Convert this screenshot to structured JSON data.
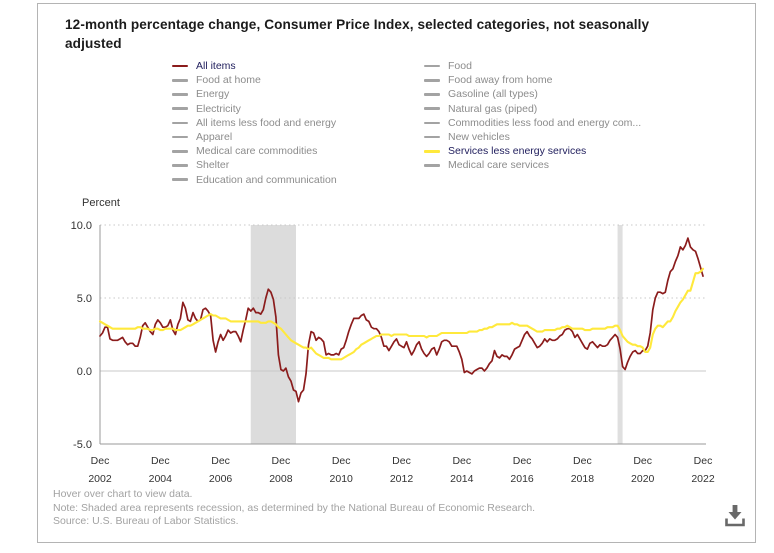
{
  "title": "12-month percentage change, Consumer Price Index, selected categories, not seasonally adjusted",
  "colors": {
    "all_items_line": "#8b1c1c",
    "services_line": "#ffe93c",
    "active_text": "#23215f",
    "inactive_text": "#8c8c8c",
    "inactive_swatch": "#a3a3a3",
    "grid": "#c8c8c8",
    "axis": "#9a9a9a",
    "tick_text": "#333333",
    "recession_band": "#dcdcdc",
    "download_icon": "#696969"
  },
  "legend": {
    "left": [
      {
        "label": "All items",
        "active": true,
        "color": "#8b1c1c",
        "text_color": "#23215f"
      },
      {
        "label": "Food at home",
        "active": false,
        "color": "#a3a3a3",
        "text_color": "#8c8c8c"
      },
      {
        "label": "Energy",
        "active": false,
        "color": "#a3a3a3",
        "text_color": "#8c8c8c"
      },
      {
        "label": "Electricity",
        "active": false,
        "color": "#a3a3a3",
        "text_color": "#8c8c8c"
      },
      {
        "label": "All items less food and energy",
        "active": false,
        "color": "#a3a3a3",
        "text_color": "#8c8c8c"
      },
      {
        "label": "Apparel",
        "active": false,
        "color": "#a3a3a3",
        "text_color": "#8c8c8c"
      },
      {
        "label": "Medical care commodities",
        "active": false,
        "color": "#a3a3a3",
        "text_color": "#8c8c8c"
      },
      {
        "label": "Shelter",
        "active": false,
        "color": "#a3a3a3",
        "text_color": "#8c8c8c"
      },
      {
        "label": "Education and communication",
        "active": false,
        "color": "#a3a3a3",
        "text_color": "#8c8c8c"
      }
    ],
    "right": [
      {
        "label": "Food",
        "active": false,
        "color": "#a3a3a3",
        "text_color": "#8c8c8c"
      },
      {
        "label": "Food away from home",
        "active": false,
        "color": "#a3a3a3",
        "text_color": "#8c8c8c"
      },
      {
        "label": "Gasoline (all types)",
        "active": false,
        "color": "#a3a3a3",
        "text_color": "#8c8c8c"
      },
      {
        "label": "Natural gas (piped)",
        "active": false,
        "color": "#a3a3a3",
        "text_color": "#8c8c8c"
      },
      {
        "label": "Commodities less food and energy com...",
        "active": false,
        "color": "#a3a3a3",
        "text_color": "#8c8c8c"
      },
      {
        "label": "New vehicles",
        "active": false,
        "color": "#a3a3a3",
        "text_color": "#8c8c8c"
      },
      {
        "label": "Services less energy services",
        "active": true,
        "color": "#ffe93c",
        "text_color": "#23215f"
      },
      {
        "label": "Medical care services",
        "active": false,
        "color": "#a3a3a3",
        "text_color": "#8c8c8c"
      }
    ]
  },
  "footer": {
    "hover_hint": "Hover over chart to view data.",
    "note": "Note: Shaded area represents recession, as determined by the National Bureau of Economic Research.",
    "source": "Source: U.S. Bureau of Labor Statistics."
  },
  "icons": {
    "download": "download-arrow-into-tray"
  },
  "chart_data": {
    "type": "line",
    "title": "12-month percentage change, Consumer Price Index, selected categories, not seasonally adjusted",
    "xlabel": "",
    "ylabel": "Percent",
    "ylim": [
      -5.0,
      10.0
    ],
    "x_start": "Dec 2002",
    "x_end": "Dec 2022",
    "frequency": "monthly",
    "grid": "horizontal only; dotted at 5.0 and 10.0, solid at 0.0",
    "legend_position": "top",
    "y_ticks": [
      {
        "label": "10.0",
        "value": 10.0,
        "grid": "dotted"
      },
      {
        "label": "5.0",
        "value": 5.0,
        "grid": "dotted"
      },
      {
        "label": "0.0",
        "value": 0.0,
        "grid": "solid"
      },
      {
        "label": "-5.0",
        "value": -5.0,
        "grid": "none"
      }
    ],
    "x_ticks": [
      {
        "month_index": 0,
        "line1": "Dec",
        "line2": "2002"
      },
      {
        "month_index": 24,
        "line1": "Dec",
        "line2": "2004"
      },
      {
        "month_index": 48,
        "line1": "Dec",
        "line2": "2006"
      },
      {
        "month_index": 72,
        "line1": "Dec",
        "line2": "2008"
      },
      {
        "month_index": 96,
        "line1": "Dec",
        "line2": "2010"
      },
      {
        "month_index": 120,
        "line1": "Dec",
        "line2": "2012"
      },
      {
        "month_index": 144,
        "line1": "Dec",
        "line2": "2014"
      },
      {
        "month_index": 168,
        "line1": "Dec",
        "line2": "2016"
      },
      {
        "month_index": 192,
        "line1": "Dec",
        "line2": "2018"
      },
      {
        "month_index": 216,
        "line1": "Dec",
        "line2": "2020"
      },
      {
        "month_index": 240,
        "line1": "Dec",
        "line2": "2022"
      }
    ],
    "recessions": [
      {
        "label": "Dec 2007 - Jun 2009",
        "start_index": 60,
        "end_index": 78,
        "fill": "#dcdcdc"
      },
      {
        "label": "Feb 2020 - Apr 2020",
        "start_index": 206,
        "end_index": 208,
        "fill": "#dfdfdf"
      }
    ],
    "series": [
      {
        "name": "All items",
        "color": "#8b1c1c",
        "width": 1.7,
        "values": [
          2.4,
          2.6,
          3.0,
          3.0,
          2.2,
          2.1,
          2.1,
          2.1,
          2.2,
          2.3,
          2.0,
          1.8,
          1.9,
          1.9,
          1.7,
          1.7,
          2.3,
          3.1,
          3.3,
          3.0,
          2.7,
          2.5,
          3.2,
          3.5,
          3.3,
          3.0,
          3.0,
          3.1,
          3.5,
          2.8,
          2.5,
          3.2,
          3.6,
          4.7,
          4.3,
          3.5,
          3.4,
          4.0,
          3.6,
          3.4,
          3.5,
          4.2,
          4.3,
          4.1,
          3.8,
          2.1,
          1.3,
          2.0,
          2.5,
          2.1,
          2.4,
          2.8,
          2.6,
          2.7,
          2.7,
          2.4,
          2.0,
          2.8,
          3.5,
          4.3,
          4.1,
          4.3,
          4.0,
          4.0,
          3.9,
          4.2,
          5.0,
          5.6,
          5.4,
          4.9,
          3.7,
          1.1,
          0.1,
          0.0,
          0.2,
          -0.4,
          -0.7,
          -1.3,
          -1.4,
          -2.1,
          -1.5,
          -1.3,
          -0.2,
          1.8,
          2.7,
          2.6,
          2.1,
          2.3,
          2.2,
          2.0,
          1.1,
          1.2,
          1.1,
          1.1,
          1.2,
          1.1,
          1.5,
          1.6,
          2.1,
          2.7,
          3.2,
          3.6,
          3.6,
          3.6,
          3.8,
          3.9,
          3.5,
          3.4,
          3.0,
          2.9,
          2.9,
          2.7,
          2.3,
          1.7,
          1.7,
          1.4,
          1.7,
          2.0,
          2.2,
          1.8,
          1.7,
          1.6,
          2.0,
          1.5,
          1.1,
          1.4,
          1.8,
          2.0,
          1.5,
          1.2,
          1.0,
          1.2,
          1.5,
          1.6,
          1.1,
          1.5,
          2.0,
          2.1,
          2.1,
          2.0,
          1.7,
          1.7,
          1.7,
          1.3,
          0.8,
          -0.1,
          0.0,
          -0.1,
          -0.2,
          0.0,
          0.1,
          0.2,
          0.2,
          0.0,
          0.2,
          0.5,
          0.7,
          1.4,
          1.0,
          0.9,
          1.1,
          1.0,
          1.0,
          0.8,
          1.1,
          1.5,
          1.6,
          1.7,
          2.1,
          2.5,
          2.7,
          2.4,
          2.2,
          1.9,
          1.6,
          1.7,
          1.9,
          2.2,
          2.0,
          2.2,
          2.1,
          2.1,
          2.2,
          2.4,
          2.5,
          2.8,
          2.9,
          2.9,
          2.7,
          2.3,
          2.5,
          2.2,
          1.9,
          1.6,
          1.5,
          1.9,
          2.0,
          1.8,
          1.6,
          1.8,
          1.7,
          1.7,
          1.8,
          2.1,
          2.3,
          2.5,
          2.3,
          1.5,
          0.3,
          0.1,
          0.6,
          1.0,
          1.3,
          1.4,
          1.2,
          1.2,
          1.4,
          1.4,
          1.7,
          2.6,
          4.2,
          5.0,
          5.4,
          5.4,
          5.3,
          5.4,
          6.2,
          6.8,
          7.0,
          7.5,
          7.9,
          8.5,
          8.3,
          8.6,
          9.1,
          8.5,
          8.3,
          8.2,
          7.7,
          7.1,
          6.5
        ]
      },
      {
        "name": "Services less energy services",
        "color": "#ffe93c",
        "width": 2.1,
        "values": [
          3.4,
          3.3,
          3.2,
          3.1,
          3.0,
          2.9,
          2.9,
          2.9,
          2.9,
          2.9,
          2.9,
          2.9,
          2.9,
          2.9,
          2.9,
          3.0,
          3.0,
          2.9,
          2.9,
          2.9,
          2.8,
          2.8,
          2.9,
          2.9,
          2.8,
          2.8,
          2.9,
          2.9,
          2.9,
          2.9,
          2.8,
          2.8,
          2.8,
          2.9,
          3.0,
          3.1,
          3.1,
          3.2,
          3.3,
          3.4,
          3.5,
          3.6,
          3.7,
          3.8,
          3.9,
          3.8,
          3.8,
          3.7,
          3.6,
          3.6,
          3.6,
          3.5,
          3.4,
          3.4,
          3.4,
          3.4,
          3.4,
          3.4,
          3.4,
          3.4,
          3.4,
          3.4,
          3.4,
          3.4,
          3.3,
          3.3,
          3.3,
          3.4,
          3.4,
          3.3,
          3.2,
          3.0,
          2.9,
          2.7,
          2.5,
          2.3,
          2.1,
          2.0,
          1.9,
          1.8,
          1.7,
          1.6,
          1.6,
          1.5,
          1.6,
          1.4,
          1.2,
          1.1,
          1.0,
          0.9,
          0.9,
          0.9,
          0.8,
          0.8,
          0.8,
          0.8,
          0.8,
          0.9,
          1.0,
          1.1,
          1.2,
          1.3,
          1.5,
          1.6,
          1.8,
          1.9,
          2.0,
          2.1,
          2.2,
          2.3,
          2.4,
          2.4,
          2.5,
          2.5,
          2.5,
          2.5,
          2.4,
          2.5,
          2.5,
          2.5,
          2.5,
          2.5,
          2.5,
          2.4,
          2.4,
          2.4,
          2.4,
          2.4,
          2.4,
          2.4,
          2.3,
          2.4,
          2.4,
          2.4,
          2.4,
          2.5,
          2.6,
          2.6,
          2.6,
          2.6,
          2.6,
          2.6,
          2.6,
          2.6,
          2.6,
          2.6,
          2.6,
          2.7,
          2.7,
          2.7,
          2.7,
          2.8,
          2.8,
          2.9,
          2.9,
          3.0,
          3.0,
          3.1,
          3.2,
          3.2,
          3.2,
          3.2,
          3.2,
          3.2,
          3.3,
          3.2,
          3.2,
          3.1,
          3.1,
          3.1,
          3.1,
          3.0,
          2.9,
          2.8,
          2.7,
          2.7,
          2.7,
          2.8,
          2.8,
          2.8,
          2.8,
          2.8,
          2.9,
          2.9,
          3.0,
          3.0,
          3.1,
          3.0,
          2.9,
          2.9,
          2.9,
          2.9,
          2.9,
          2.8,
          2.8,
          2.8,
          2.9,
          2.9,
          2.9,
          2.9,
          2.9,
          2.9,
          3.0,
          3.0,
          3.0,
          3.1,
          3.1,
          2.8,
          2.4,
          2.2,
          2.0,
          1.9,
          1.8,
          1.8,
          1.7,
          1.7,
          1.6,
          1.3,
          1.3,
          1.6,
          2.5,
          2.9,
          3.1,
          3.1,
          3.0,
          3.2,
          3.4,
          3.4,
          3.7,
          4.1,
          4.4,
          4.7,
          4.9,
          5.2,
          5.5,
          5.5,
          6.1,
          6.7,
          6.7,
          6.8,
          7.0
        ]
      }
    ]
  }
}
